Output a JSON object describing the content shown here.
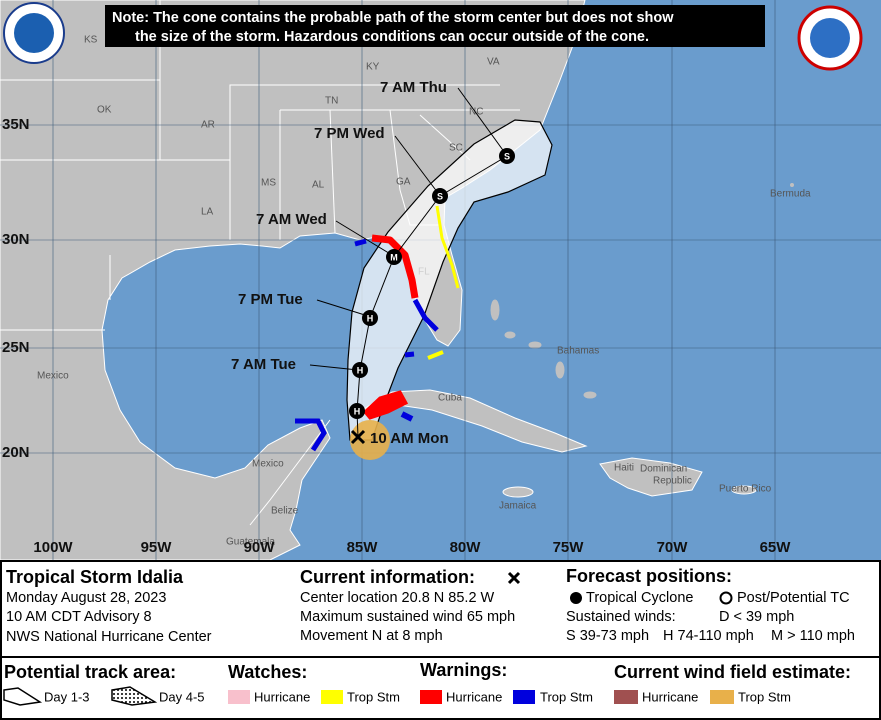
{
  "note": [
    "Note: The cone contains the probable path of the storm center but does not show",
    "the size of the storm. Hazardous conditions can occur outside of the cone."
  ],
  "map": {
    "places": [
      "KS",
      "KY",
      "VA",
      "OK",
      "TN",
      "AR",
      "NC",
      "SC",
      "MS",
      "AL",
      "GA",
      "LA",
      "FL",
      "Bermuda",
      "Bahamas",
      "Cuba",
      "Mexico",
      "Mexico",
      "Haiti",
      "Dominican",
      "Republic",
      "Puerto Rico",
      "Jamaica",
      "Belize",
      "Guatemala"
    ],
    "latitudes": [
      "35N",
      "30N",
      "25N",
      "20N"
    ],
    "longitudes": [
      "100W",
      "95W",
      "90W",
      "85W",
      "80W",
      "75W",
      "70W",
      "65W"
    ]
  },
  "track": {
    "current_label": "10 AM Mon",
    "points": [
      {
        "code": "H"
      },
      {
        "code": "H",
        "label": "7 AM Tue"
      },
      {
        "code": "H",
        "label": "7 PM Tue"
      },
      {
        "code": "M",
        "label": "7 AM Wed"
      },
      {
        "code": "S",
        "label": "7 PM Wed"
      },
      {
        "code": "S",
        "label": "7 AM Thu"
      }
    ]
  },
  "info": {
    "storm": "Tropical Storm Idalia",
    "date": "Monday August 28, 2023",
    "advisory": "10 AM CDT Advisory 8",
    "center": "NWS National Hurricane Center"
  },
  "current": {
    "title": "Current information:",
    "lines": [
      "Center location 20.8 N 85.2 W",
      "Maximum sustained wind 65 mph",
      "Movement N at 8 mph"
    ]
  },
  "forecast": {
    "title": "Forecast positions:",
    "tropical": "Tropical Cyclone",
    "post": "Post/Potential TC",
    "winds_title": "Sustained winds:",
    "winds": [
      "D < 39 mph",
      "S 39-73 mph",
      "H 74-110 mph",
      "M > 110 mph"
    ]
  },
  "legend": {
    "track_title": "Potential track area:",
    "day13": "Day 1-3",
    "day45": "Day 4-5",
    "watches_title": "Watches:",
    "watches": [
      "Hurricane",
      "Trop Stm"
    ],
    "warnings_title": "Warnings:",
    "warnings": [
      "Hurricane",
      "Trop Stm"
    ],
    "wind_title": "Current wind field estimate:",
    "wind": [
      "Hurricane",
      "Trop Stm"
    ]
  }
}
